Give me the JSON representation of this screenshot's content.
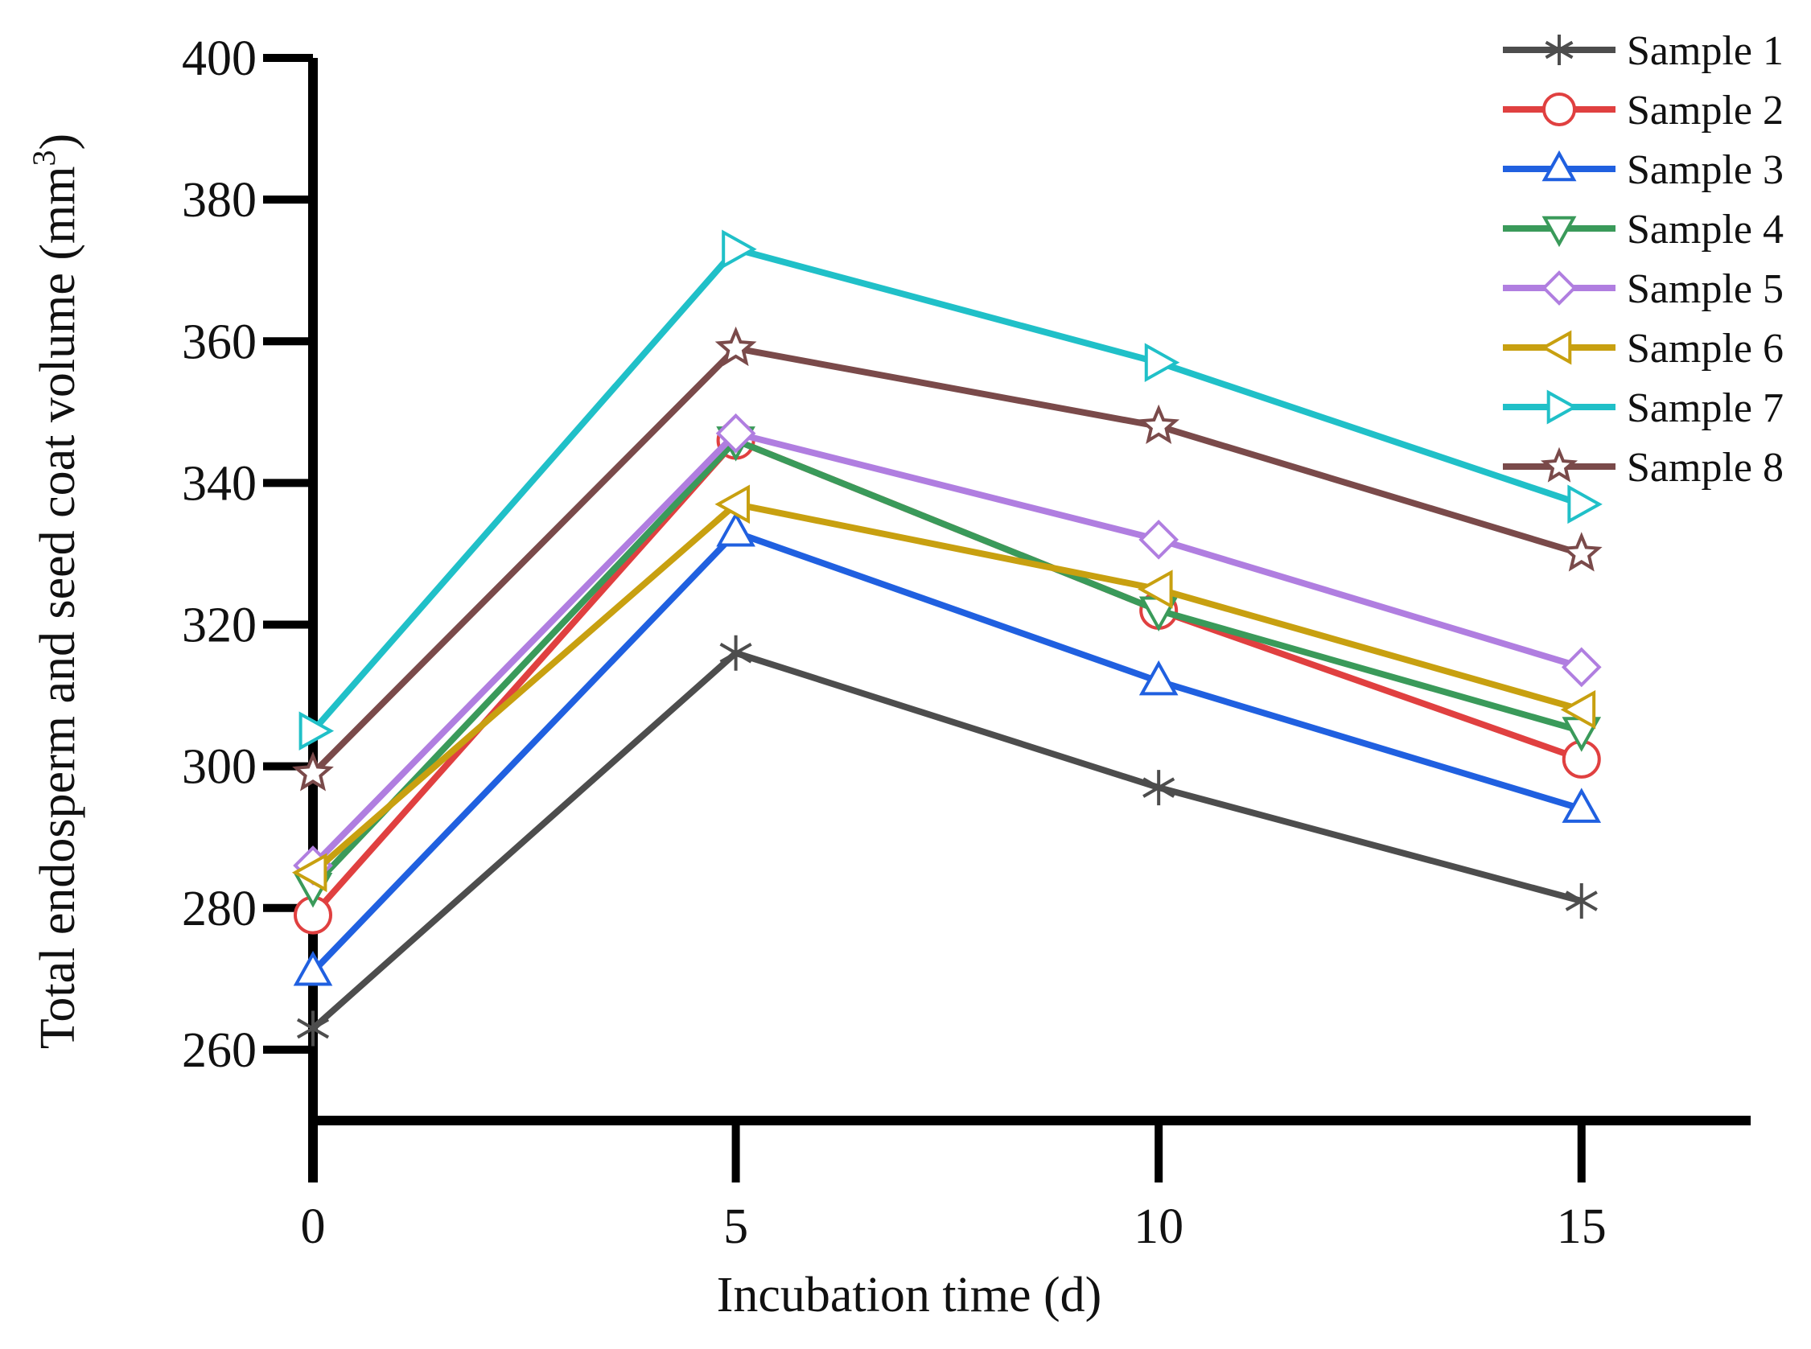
{
  "chart_data": {
    "type": "line",
    "title": "",
    "xlabel": "Incubation time (d)",
    "ylabel": "Total endosperm and seed coat volume (mm",
    "ylabel_sup": "3",
    "ylabel_close": ")",
    "x": [
      0,
      5,
      10,
      15
    ],
    "x_ticks": [
      "0",
      "5",
      "10",
      "15"
    ],
    "y_ticks": [
      "260",
      "280",
      "300",
      "320",
      "340",
      "360",
      "380",
      "400"
    ],
    "xlim": [
      0,
      17
    ],
    "ylim": [
      250,
      400
    ],
    "grid": false,
    "legend_position": "top-right",
    "series": [
      {
        "name": "Sample 1",
        "values": [
          263,
          316,
          297,
          281
        ],
        "color": "#4d4d4d",
        "marker": "asterisk"
      },
      {
        "name": "Sample 2",
        "values": [
          279,
          346,
          322,
          301
        ],
        "color": "#e04040",
        "marker": "circle"
      },
      {
        "name": "Sample 3",
        "values": [
          271,
          333,
          312,
          294
        ],
        "color": "#2060e0",
        "marker": "triangle-up"
      },
      {
        "name": "Sample 4",
        "values": [
          283,
          346,
          322,
          305
        ],
        "color": "#3a9a5a",
        "marker": "triangle-down"
      },
      {
        "name": "Sample 5",
        "values": [
          286,
          347,
          332,
          314
        ],
        "color": "#b07ee0",
        "marker": "diamond"
      },
      {
        "name": "Sample 6",
        "values": [
          285,
          337,
          325,
          308
        ],
        "color": "#c8a010",
        "marker": "triangle-left"
      },
      {
        "name": "Sample 7",
        "values": [
          305,
          373,
          357,
          337
        ],
        "color": "#20c0c8",
        "marker": "triangle-right"
      },
      {
        "name": "Sample 8",
        "values": [
          299,
          359,
          348,
          330
        ],
        "color": "#7a4a4a",
        "marker": "star"
      }
    ]
  }
}
